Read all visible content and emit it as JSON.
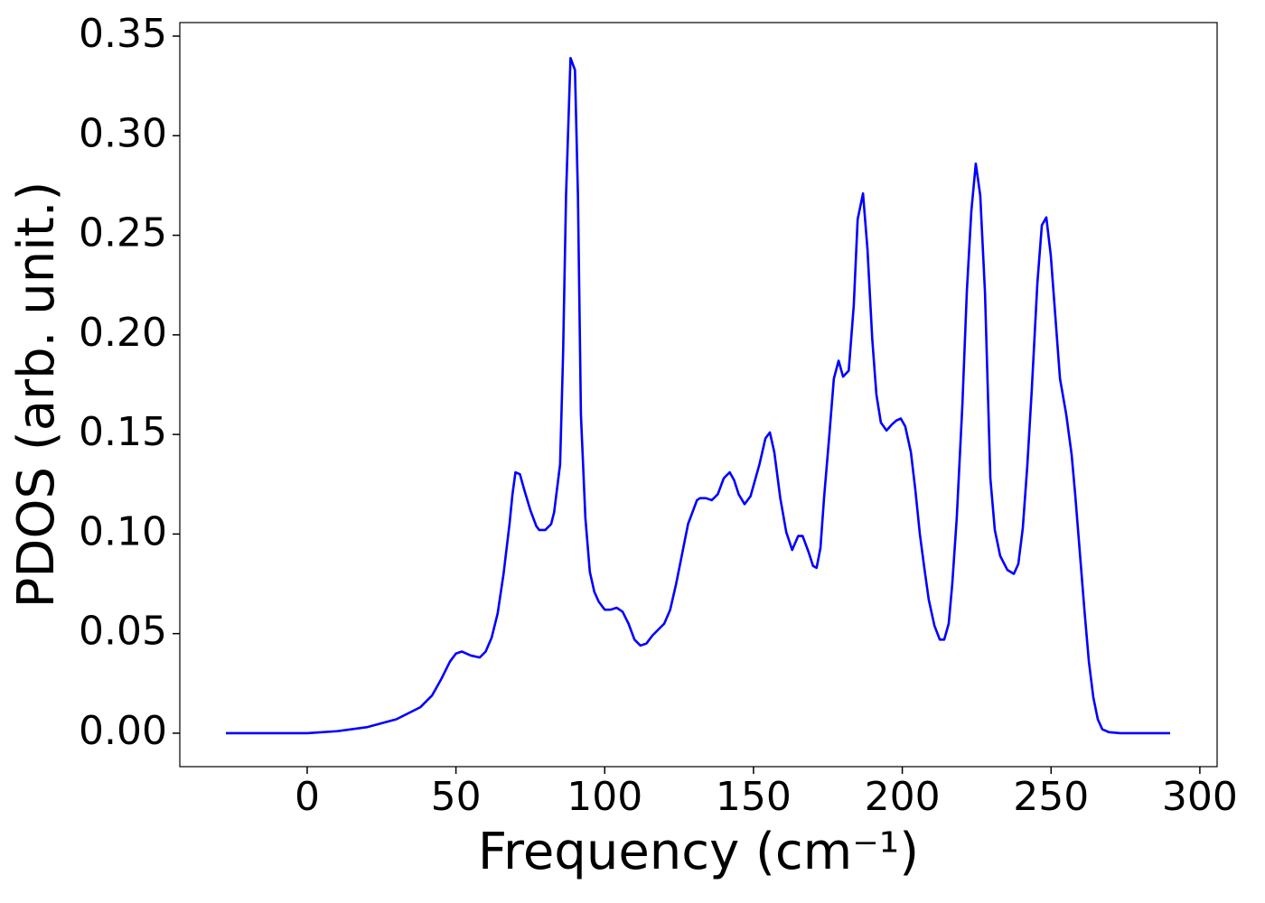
{
  "chart_data": {
    "type": "line",
    "x_label": "Frequency (cm⁻¹)",
    "y_label": "PDOS (arb. unit.)",
    "x": [
      -27.3,
      0,
      10,
      20,
      30,
      38,
      42,
      45,
      48,
      50,
      52,
      55,
      58,
      60,
      62,
      64,
      66,
      68,
      69,
      70,
      71.5,
      73,
      75,
      77,
      78,
      80,
      82,
      83,
      85,
      86,
      87,
      88.5,
      90,
      91,
      92,
      93.5,
      95,
      96.5,
      98,
      100,
      102,
      104,
      106,
      108,
      110,
      112,
      114,
      116,
      118,
      120,
      122,
      124,
      126,
      128,
      130,
      131,
      132,
      134,
      136,
      138,
      140,
      142,
      143.5,
      145,
      147,
      149,
      152,
      154,
      155.5,
      157,
      159,
      161,
      163,
      165,
      166.5,
      168.5,
      170,
      171.2,
      172.5,
      173.7,
      175.5,
      177,
      178.6,
      180.1,
      182,
      183.7,
      185,
      186.8,
      188.3,
      189.9,
      191.3,
      192.8,
      194.7,
      196.5,
      198,
      199.5,
      201,
      202.9,
      204.4,
      205.9,
      207.4,
      208.9,
      210.8,
      212.6,
      214.1,
      215.6,
      216.8,
      218.3,
      220.2,
      221.7,
      223.2,
      224.7,
      226.2,
      227.8,
      229.6,
      231.1,
      232.9,
      235.3,
      237.5,
      239,
      240.5,
      242,
      243.5,
      245.4,
      246.9,
      248.4,
      249.9,
      251.4,
      253,
      255.1,
      256.9,
      258.1,
      259.6,
      261.2,
      262.7,
      264.2,
      265.7,
      267.2,
      269.4,
      273.3,
      290
    ],
    "series": [
      {
        "name": "PDOS",
        "color": "#0000ff",
        "values": [
          0,
          0,
          0.001,
          0.003,
          0.007,
          0.013,
          0.019,
          0.027,
          0.036,
          0.04,
          0.041,
          0.039,
          0.038,
          0.041,
          0.048,
          0.06,
          0.08,
          0.105,
          0.12,
          0.131,
          0.13,
          0.122,
          0.112,
          0.104,
          0.102,
          0.102,
          0.105,
          0.111,
          0.135,
          0.19,
          0.27,
          0.339,
          0.333,
          0.27,
          0.16,
          0.108,
          0.081,
          0.071,
          0.066,
          0.062,
          0.062,
          0.063,
          0.061,
          0.055,
          0.047,
          0.044,
          0.045,
          0.049,
          0.052,
          0.055,
          0.062,
          0.075,
          0.09,
          0.105,
          0.113,
          0.117,
          0.118,
          0.118,
          0.117,
          0.12,
          0.128,
          0.131,
          0.127,
          0.12,
          0.115,
          0.119,
          0.135,
          0.148,
          0.151,
          0.141,
          0.118,
          0.101,
          0.092,
          0.099,
          0.099,
          0.091,
          0.084,
          0.083,
          0.093,
          0.118,
          0.15,
          0.178,
          0.187,
          0.179,
          0.182,
          0.215,
          0.258,
          0.271,
          0.243,
          0.198,
          0.17,
          0.156,
          0.152,
          0.155,
          0.157,
          0.158,
          0.154,
          0.141,
          0.122,
          0.1,
          0.083,
          0.067,
          0.054,
          0.047,
          0.047,
          0.055,
          0.075,
          0.108,
          0.165,
          0.222,
          0.262,
          0.286,
          0.27,
          0.221,
          0.128,
          0.102,
          0.089,
          0.082,
          0.08,
          0.085,
          0.103,
          0.134,
          0.172,
          0.226,
          0.255,
          0.259,
          0.24,
          0.21,
          0.178,
          0.16,
          0.14,
          0.12,
          0.092,
          0.062,
          0.036,
          0.018,
          0.007,
          0.002,
          0.0005,
          0,
          0
        ]
      }
    ],
    "xlim": [
      -42.8,
      305.8
    ],
    "xticks": [
      0,
      50,
      100,
      150,
      200,
      250,
      300
    ],
    "ylim": [
      -0.0168,
      0.3568
    ],
    "yticks": [
      {
        "value": 0,
        "label": "0.00"
      },
      0.05,
      {
        "value": 0.1,
        "label": "0.10"
      },
      0.15,
      {
        "value": 0.2,
        "label": "0.20"
      },
      0.25,
      {
        "value": 0.3,
        "label": "0.30"
      },
      0.35
    ],
    "grid": false
  }
}
